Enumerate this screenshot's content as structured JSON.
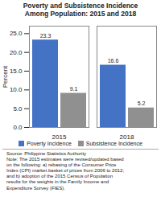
{
  "chart_data": {
    "type": "bar",
    "title": "Poverty and Subsistence Incidence\nAmong Population: 2015 and 2018",
    "categories": [
      "2015",
      "2018"
    ],
    "series": [
      {
        "name": "Poverty Incidence",
        "color": "#4472C4",
        "values": [
          23.3,
          16.6
        ]
      },
      {
        "name": "Subsistence Incidence",
        "color": "#909090",
        "values": [
          9.1,
          5.2
        ]
      }
    ],
    "ylabel": "Percent",
    "ylim": [
      0,
      27
    ],
    "yticks": [
      {
        "value": 0.0,
        "label": "0.0"
      },
      {
        "value": 5.0,
        "label": "5.0"
      },
      {
        "value": 10.0,
        "label": "10.0"
      },
      {
        "value": 15.0,
        "label": "15.0"
      },
      {
        "value": 20.0,
        "label": "20.0"
      },
      {
        "value": 25.0,
        "label": "25.0"
      }
    ],
    "data_labels": true,
    "grid": false,
    "legend": "bottom",
    "annotations": [
      "Source: Philippine Statistics Authority\nNote: The 2015 estimates were revised/updated based\non the following: a) rebasing of the Consumer Price\nIndex (CPI) market basket of prices from 2006 to 2012;\nand b) adoption of the 2015 Census of Population\nresults for the weights in the Family Income and\nExpenditure Survey (FIES)."
    ]
  }
}
